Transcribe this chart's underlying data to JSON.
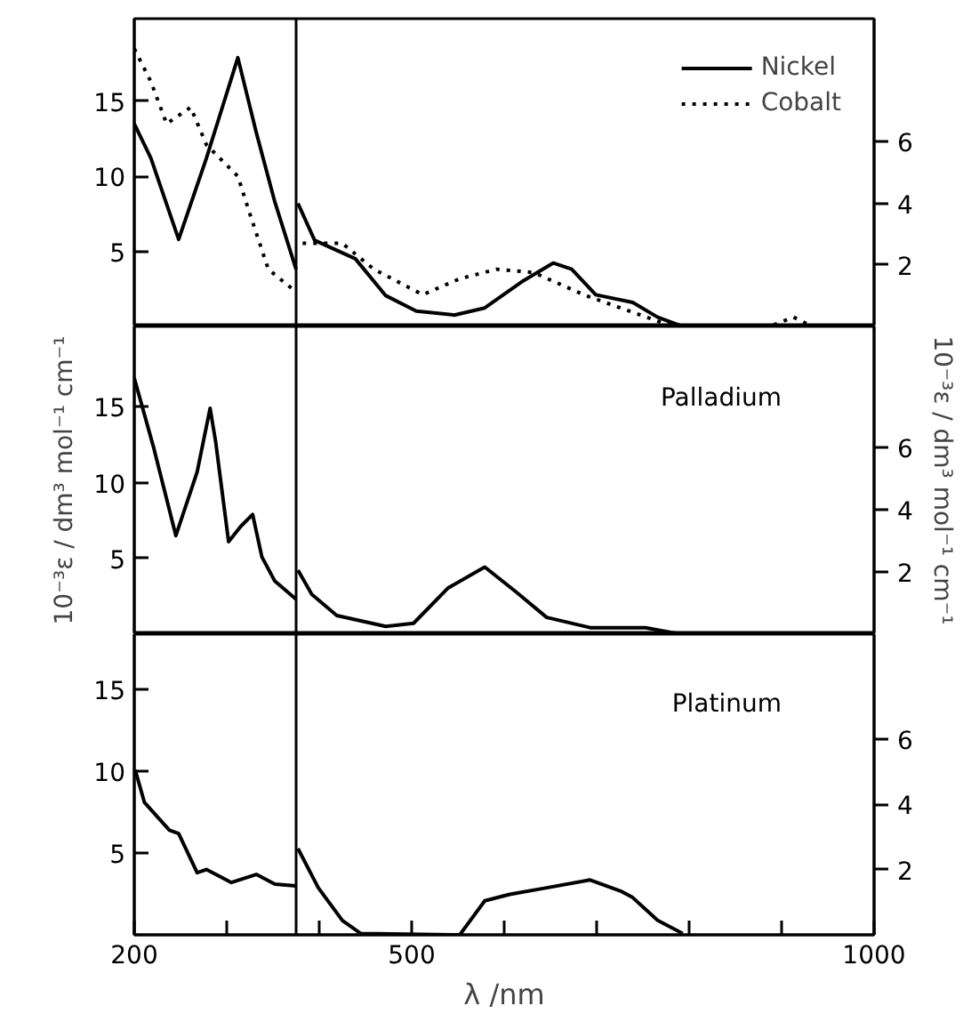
{
  "chart_data": [
    {
      "type": "line",
      "xlim": [
        200,
        1000
      ],
      "ylim": [
        0,
        20.5
      ],
      "yticks": [
        5,
        10,
        15
      ],
      "y2lim": [
        0,
        10
      ],
      "y2ticks": [
        2,
        4,
        6
      ],
      "tick_labels": "y",
      "legend": "top right",
      "ref_lines": [
        {
          "axis": "x",
          "value": 375,
          "color": "#000000"
        }
      ],
      "series": [
        {
          "name": "Nickel",
          "color": "#000000",
          "line_style": "solid",
          "x": [
            200,
            218,
            248,
            278,
            312,
            332,
            352,
            375
          ],
          "values": [
            13.5,
            11.2,
            5.8,
            11.2,
            17.9,
            12.9,
            8.3,
            3.8
          ]
        },
        {
          "name": "Cobalt",
          "color": "#000000",
          "line_style": "dotted",
          "x": [
            200,
            218,
            235,
            261,
            278,
            312,
            325,
            345,
            375
          ],
          "values": [
            18.5,
            16.3,
            13.5,
            14.6,
            12.1,
            10,
            7.5,
            3.8,
            2.3
          ]
        },
        {
          "color": "#000000",
          "line_style": "solid",
          "axis": "y2",
          "x": [
            377,
            395,
            439,
            472,
            505,
            546,
            579,
            619,
            653,
            673,
            699,
            739,
            766,
            793,
            927
          ],
          "values": [
            4.0,
            2.8,
            2.2,
            1.0,
            0.5,
            0.37,
            0.6,
            1.45,
            2.06,
            1.86,
            1.03,
            0.78,
            0.3,
            0,
            0
          ]
        },
        {
          "color": "#000000",
          "line_style": "dotted",
          "axis": "y2",
          "x": [
            382,
            425,
            459,
            512,
            552,
            592,
            632,
            686,
            726,
            773,
            793,
            887,
            913,
            933
          ],
          "values": [
            2.7,
            2.7,
            1.86,
            1.03,
            1.55,
            1.86,
            1.75,
            1.03,
            0.6,
            0.1,
            0,
            0,
            0.3,
            0
          ]
        }
      ]
    },
    {
      "type": "line",
      "xlim": [
        200,
        1000
      ],
      "ylim": [
        0,
        20.3
      ],
      "yticks": [
        5,
        10,
        15
      ],
      "y2lim": [
        0,
        9.9
      ],
      "y2ticks": [
        2,
        4,
        6
      ],
      "tick_labels": "y",
      "ylabel": "10⁻³ε / dm³ mol⁻¹ cm⁻¹",
      "y2label": "10⁻³ε / dm³ mol⁻¹ cm⁻¹",
      "annotations": [
        "Palladium"
      ],
      "ref_lines": [
        {
          "axis": "x",
          "value": 375,
          "color": "#000000"
        }
      ],
      "series": [
        {
          "color": "#000000",
          "line_style": "solid",
          "x": [
            200,
            221,
            245,
            268,
            282,
            288,
            302,
            315,
            328,
            338,
            352,
            375
          ],
          "values": [
            16.9,
            12.3,
            6.5,
            10.7,
            14.9,
            12.7,
            6.1,
            7.1,
            7.9,
            5.1,
            3.5,
            2.3
          ]
        },
        {
          "color": "#000000",
          "line_style": "solid",
          "axis": "y2",
          "x": [
            377,
            392,
            419,
            472,
            502,
            539,
            579,
            612,
            646,
            693,
            753,
            780,
            793
          ],
          "values": [
            2.06,
            1.28,
            0.6,
            0.25,
            0.35,
            1.48,
            2.16,
            1.38,
            0.54,
            0.21,
            0.21,
            0.06,
            0
          ]
        }
      ]
    },
    {
      "type": "line",
      "xlim": [
        200,
        1000
      ],
      "xticks": [
        200,
        {
          "value": 300,
          "label": null
        },
        {
          "value": 400,
          "label": null
        },
        500,
        {
          "value": 600,
          "label": null
        },
        {
          "value": 700,
          "label": null
        },
        {
          "value": 800,
          "label": null
        },
        {
          "value": 900,
          "label": null
        },
        1000
      ],
      "ylim": [
        0,
        18.4
      ],
      "yticks": [
        5,
        10,
        15
      ],
      "y2lim": [
        0,
        9.2
      ],
      "y2ticks": [
        2,
        4,
        6
      ],
      "xlabel": "λ /nm",
      "annotations": [
        "Platinum"
      ],
      "ref_lines": [
        {
          "axis": "x",
          "value": 375,
          "color": "#000000"
        }
      ],
      "series": [
        {
          "color": "#000000",
          "line_style": "solid",
          "x": [
            201,
            211,
            238,
            248,
            258,
            268,
            278,
            305,
            332,
            352,
            375
          ],
          "values": [
            10.1,
            8.1,
            6.4,
            6.2,
            5,
            3.8,
            4,
            3.2,
            3.7,
            3.1,
            3
          ]
        },
        {
          "color": "#000000",
          "line_style": "solid",
          "axis": "y2",
          "x": [
            377,
            399,
            425,
            445,
            552,
            579,
            606,
            646,
            693,
            726,
            739,
            766,
            793
          ],
          "values": [
            2.64,
            1.44,
            0.44,
            0.04,
            0,
            1.04,
            1.24,
            1.44,
            1.68,
            1.34,
            1.14,
            0.44,
            0.04
          ]
        }
      ]
    }
  ]
}
